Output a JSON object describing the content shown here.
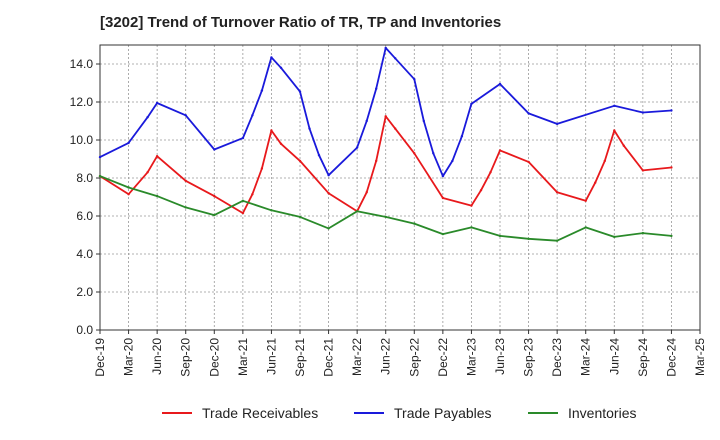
{
  "title": "[3202]  Trend of Turnover Ratio of TR, TP and Inventories",
  "chart_data": {
    "type": "line",
    "x_ticks": [
      "Dec-19",
      "Mar-20",
      "Jun-20",
      "Sep-20",
      "Dec-20",
      "Mar-21",
      "Jun-21",
      "Sep-21",
      "Dec-21",
      "Mar-22",
      "Jun-22",
      "Sep-22",
      "Dec-22",
      "Mar-23",
      "Jun-23",
      "Sep-23",
      "Dec-23",
      "Mar-24",
      "Jun-24",
      "Sep-24",
      "Dec-24",
      "Mar-25"
    ],
    "y_ticks": [
      "0.0",
      "2.0",
      "4.0",
      "6.0",
      "8.0",
      "10.0",
      "12.0",
      "14.0"
    ],
    "ylim": [
      0,
      15
    ],
    "grid": true,
    "legend_position": "bottom",
    "x_months": [
      "Dec-19",
      "Jan-20",
      "Feb-20",
      "Mar-20",
      "Apr-20",
      "May-20",
      "Jun-20",
      "Jul-20",
      "Aug-20",
      "Sep-20",
      "Oct-20",
      "Nov-20",
      "Dec-20",
      "Jan-21",
      "Feb-21",
      "Mar-21",
      "Apr-21",
      "May-21",
      "Jun-21",
      "Jul-21",
      "Aug-21",
      "Sep-21",
      "Oct-21",
      "Nov-21",
      "Dec-21",
      "Jan-22",
      "Feb-22",
      "Mar-22",
      "Apr-22",
      "May-22",
      "Jun-22",
      "Jul-22",
      "Aug-22",
      "Sep-22",
      "Oct-22",
      "Nov-22",
      "Dec-22",
      "Jan-23",
      "Feb-23",
      "Mar-23",
      "Apr-23",
      "May-23",
      "Jun-23",
      "Jul-23",
      "Aug-23",
      "Sep-23",
      "Oct-23",
      "Nov-23",
      "Dec-23",
      "Jan-24",
      "Feb-24",
      "Mar-24",
      "Apr-24",
      "May-24",
      "Jun-24",
      "Jul-24",
      "Aug-24",
      "Sep-24",
      "Oct-24",
      "Nov-24",
      "Dec-24"
    ],
    "series": [
      {
        "name": "Trade Receivables",
        "color": "#e8191c",
        "points": [
          {
            "x": "Dec-19",
            "y": 8.1
          },
          {
            "x": "Mar-20",
            "y": 7.15
          },
          {
            "x": "May-20",
            "y": 8.3
          },
          {
            "x": "Jun-20",
            "y": 9.15
          },
          {
            "x": "Sep-20",
            "y": 7.85
          },
          {
            "x": "Dec-20",
            "y": 7.05
          },
          {
            "x": "Mar-21",
            "y": 6.15
          },
          {
            "x": "Apr-21",
            "y": 7.15
          },
          {
            "x": "May-21",
            "y": 8.5
          },
          {
            "x": "Jun-21",
            "y": 10.5
          },
          {
            "x": "Jul-21",
            "y": 9.8
          },
          {
            "x": "Sep-21",
            "y": 8.9
          },
          {
            "x": "Dec-21",
            "y": 7.2
          },
          {
            "x": "Mar-22",
            "y": 6.25
          },
          {
            "x": "Apr-22",
            "y": 7.25
          },
          {
            "x": "May-22",
            "y": 8.9
          },
          {
            "x": "Jun-22",
            "y": 11.25
          },
          {
            "x": "Jul-22",
            "y": 10.6
          },
          {
            "x": "Sep-22",
            "y": 9.3
          },
          {
            "x": "Dec-22",
            "y": 6.95
          },
          {
            "x": "Mar-23",
            "y": 6.55
          },
          {
            "x": "Apr-23",
            "y": 7.35
          },
          {
            "x": "May-23",
            "y": 8.3
          },
          {
            "x": "Jun-23",
            "y": 9.45
          },
          {
            "x": "Sep-23",
            "y": 8.85
          },
          {
            "x": "Dec-23",
            "y": 7.25
          },
          {
            "x": "Mar-24",
            "y": 6.8
          },
          {
            "x": "Apr-24",
            "y": 7.75
          },
          {
            "x": "May-24",
            "y": 8.9
          },
          {
            "x": "Jun-24",
            "y": 10.5
          },
          {
            "x": "Jul-24",
            "y": 9.7
          },
          {
            "x": "Sep-24",
            "y": 8.4
          },
          {
            "x": "Dec-24",
            "y": 8.55
          }
        ]
      },
      {
        "name": "Trade Payables",
        "color": "#1a1adb",
        "points": [
          {
            "x": "Dec-19",
            "y": 9.1
          },
          {
            "x": "Mar-20",
            "y": 9.85
          },
          {
            "x": "May-20",
            "y": 11.2
          },
          {
            "x": "Jun-20",
            "y": 11.95
          },
          {
            "x": "Sep-20",
            "y": 11.3
          },
          {
            "x": "Dec-20",
            "y": 9.5
          },
          {
            "x": "Mar-21",
            "y": 10.1
          },
          {
            "x": "Apr-21",
            "y": 11.3
          },
          {
            "x": "May-21",
            "y": 12.6
          },
          {
            "x": "Jun-21",
            "y": 14.35
          },
          {
            "x": "Jul-21",
            "y": 13.8
          },
          {
            "x": "Sep-21",
            "y": 12.55
          },
          {
            "x": "Oct-21",
            "y": 10.6
          },
          {
            "x": "Nov-21",
            "y": 9.2
          },
          {
            "x": "Dec-21",
            "y": 8.15
          },
          {
            "x": "Mar-22",
            "y": 9.6
          },
          {
            "x": "Apr-22",
            "y": 11.0
          },
          {
            "x": "May-22",
            "y": 12.7
          },
          {
            "x": "Jun-22",
            "y": 14.85
          },
          {
            "x": "Jul-22",
            "y": 14.3
          },
          {
            "x": "Sep-22",
            "y": 13.2
          },
          {
            "x": "Oct-22",
            "y": 11.0
          },
          {
            "x": "Nov-22",
            "y": 9.3
          },
          {
            "x": "Dec-22",
            "y": 8.1
          },
          {
            "x": "Jan-23",
            "y": 8.9
          },
          {
            "x": "Feb-23",
            "y": 10.2
          },
          {
            "x": "Mar-23",
            "y": 11.9
          },
          {
            "x": "Jun-23",
            "y": 12.95
          },
          {
            "x": "Sep-23",
            "y": 11.4
          },
          {
            "x": "Dec-23",
            "y": 10.85
          },
          {
            "x": "Jun-24",
            "y": 11.8
          },
          {
            "x": "Sep-24",
            "y": 11.45
          },
          {
            "x": "Dec-24",
            "y": 11.55
          }
        ]
      },
      {
        "name": "Inventories",
        "color": "#2a8a2a",
        "points": [
          {
            "x": "Dec-19",
            "y": 8.1
          },
          {
            "x": "Mar-20",
            "y": 7.5
          },
          {
            "x": "Jun-20",
            "y": 7.05
          },
          {
            "x": "Sep-20",
            "y": 6.45
          },
          {
            "x": "Dec-20",
            "y": 6.05
          },
          {
            "x": "Mar-21",
            "y": 6.8
          },
          {
            "x": "Jun-21",
            "y": 6.3
          },
          {
            "x": "Sep-21",
            "y": 5.95
          },
          {
            "x": "Dec-21",
            "y": 5.35
          },
          {
            "x": "Mar-22",
            "y": 6.25
          },
          {
            "x": "Jun-22",
            "y": 5.95
          },
          {
            "x": "Sep-22",
            "y": 5.6
          },
          {
            "x": "Dec-22",
            "y": 5.05
          },
          {
            "x": "Mar-23",
            "y": 5.4
          },
          {
            "x": "Jun-23",
            "y": 4.95
          },
          {
            "x": "Sep-23",
            "y": 4.8
          },
          {
            "x": "Dec-23",
            "y": 4.7
          },
          {
            "x": "Mar-24",
            "y": 5.4
          },
          {
            "x": "Jun-24",
            "y": 4.9
          },
          {
            "x": "Sep-24",
            "y": 5.1
          },
          {
            "x": "Dec-24",
            "y": 4.95
          }
        ]
      }
    ]
  }
}
